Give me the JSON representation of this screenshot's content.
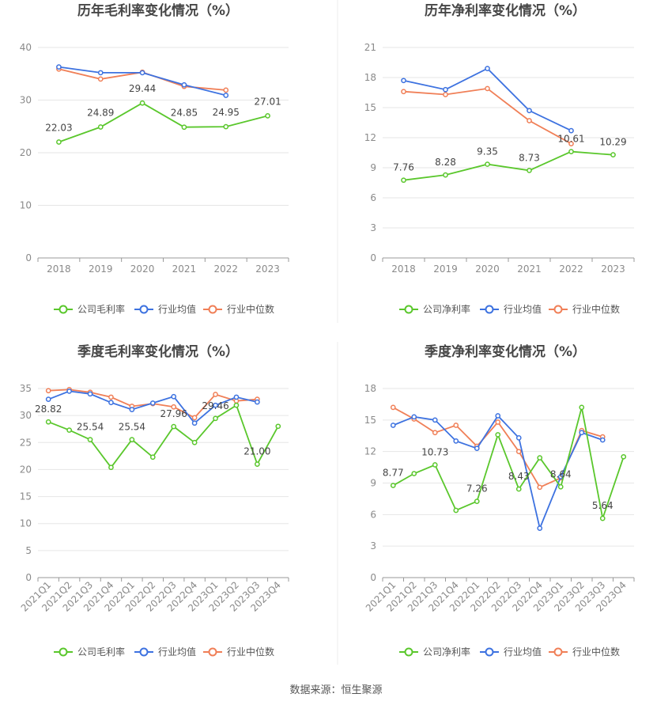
{
  "footer": {
    "source": "数据来源：恒生聚源"
  },
  "colors": {
    "company": "#5ac72c",
    "avg": "#3d72e0",
    "median": "#f07f57"
  },
  "chart_data": [
    {
      "type": "line",
      "title": "历年毛利率变化情况（%）",
      "categories": [
        "2018",
        "2019",
        "2020",
        "2021",
        "2022",
        "2023"
      ],
      "yticks": [
        "0",
        "10",
        "20",
        "30",
        "40"
      ],
      "ylim": [
        0,
        40
      ],
      "legend_placement": "bottom",
      "series": [
        {
          "name": "公司毛利率",
          "values": [
            22.03,
            24.89,
            29.44,
            24.85,
            24.95,
            27.01
          ]
        },
        {
          "name": "行业均值",
          "values": [
            36.3,
            35.2,
            35.2,
            32.9,
            30.9,
            null
          ]
        },
        {
          "name": "行业中位数",
          "values": [
            35.9,
            34.0,
            35.3,
            32.6,
            31.9,
            null
          ]
        }
      ],
      "data_labels": [
        {
          "text": "22.03",
          "index": 0
        },
        {
          "text": "24.89",
          "index": 1
        },
        {
          "text": "29.44",
          "index": 2
        },
        {
          "text": "24.85",
          "index": 3
        },
        {
          "text": "24.95",
          "index": 4
        },
        {
          "text": "27.01",
          "index": 5
        }
      ]
    },
    {
      "type": "line",
      "title": "历年净利率变化情况（%）",
      "categories": [
        "2018",
        "2019",
        "2020",
        "2021",
        "2022",
        "2023"
      ],
      "yticks": [
        "0",
        "3",
        "6",
        "9",
        "12",
        "15",
        "18",
        "21"
      ],
      "ylim": [
        0,
        21
      ],
      "legend_placement": "bottom",
      "series": [
        {
          "name": "公司净利率",
          "values": [
            7.76,
            8.28,
            9.35,
            8.73,
            10.61,
            10.29
          ]
        },
        {
          "name": "行业均值",
          "values": [
            17.7,
            16.8,
            18.9,
            14.7,
            12.7,
            null
          ]
        },
        {
          "name": "行业中位数",
          "values": [
            16.6,
            16.3,
            16.9,
            13.7,
            11.4,
            null
          ]
        }
      ],
      "data_labels": [
        {
          "text": "7.76",
          "index": 0
        },
        {
          "text": "8.28",
          "index": 1
        },
        {
          "text": "9.35",
          "index": 2
        },
        {
          "text": "8.73",
          "index": 3
        },
        {
          "text": "10.61",
          "index": 4
        },
        {
          "text": "10.29",
          "index": 5
        }
      ]
    },
    {
      "type": "line",
      "title": "季度毛利率变化情况（%）",
      "categories": [
        "2021Q1",
        "2021Q2",
        "2021Q3",
        "2021Q4",
        "2022Q1",
        "2022Q2",
        "2022Q3",
        "2022Q4",
        "2023Q1",
        "2023Q2",
        "2023Q3",
        "2023Q4"
      ],
      "yticks": [
        "0",
        "5",
        "10",
        "15",
        "20",
        "25",
        "30",
        "35"
      ],
      "ylim": [
        0,
        35
      ],
      "legend_placement": "bottom",
      "series": [
        {
          "name": "公司毛利率",
          "values": [
            28.82,
            27.3,
            25.54,
            20.4,
            25.54,
            22.3,
            27.96,
            25.0,
            29.46,
            31.9,
            21.0,
            28.0
          ]
        },
        {
          "name": "行业均值",
          "values": [
            33.0,
            34.5,
            34.0,
            32.4,
            31.1,
            32.3,
            33.5,
            28.6,
            31.9,
            33.4,
            32.5,
            null
          ]
        },
        {
          "name": "行业中位数",
          "values": [
            34.6,
            34.8,
            34.3,
            33.4,
            31.7,
            32.2,
            31.6,
            29.6,
            33.9,
            32.7,
            33.0,
            null
          ]
        }
      ],
      "data_labels": [
        {
          "text": "28.82",
          "index": 0
        },
        {
          "text": "25.54",
          "index": 2
        },
        {
          "text": "25.54",
          "index": 4
        },
        {
          "text": "27.96",
          "index": 6
        },
        {
          "text": "29.46",
          "index": 8
        },
        {
          "text": "21.00",
          "index": 10
        }
      ]
    },
    {
      "type": "line",
      "title": "季度净利率变化情况（%）",
      "categories": [
        "2021Q1",
        "2021Q2",
        "2021Q3",
        "2021Q4",
        "2022Q1",
        "2022Q2",
        "2022Q3",
        "2022Q4",
        "2023Q1",
        "2023Q2",
        "2023Q3",
        "2023Q4"
      ],
      "yticks": [
        "0",
        "3",
        "6",
        "9",
        "12",
        "15",
        "18"
      ],
      "ylim": [
        0,
        18
      ],
      "legend_placement": "bottom",
      "series": [
        {
          "name": "公司净利率",
          "values": [
            8.77,
            9.9,
            10.73,
            6.4,
            7.26,
            13.6,
            8.43,
            11.4,
            8.64,
            16.2,
            5.64,
            11.5
          ]
        },
        {
          "name": "行业均值",
          "values": [
            14.5,
            15.3,
            15.0,
            13.0,
            12.3,
            15.4,
            13.3,
            4.7,
            9.6,
            13.8,
            13.1,
            null
          ]
        },
        {
          "name": "行业中位数",
          "values": [
            16.2,
            15.1,
            13.8,
            14.5,
            12.5,
            14.8,
            12.0,
            8.6,
            9.5,
            14.0,
            13.4,
            null
          ]
        }
      ],
      "data_labels": [
        {
          "text": "8.77",
          "index": 0
        },
        {
          "text": "10.73",
          "index": 2
        },
        {
          "text": "7.26",
          "index": 4
        },
        {
          "text": "8.43",
          "index": 6
        },
        {
          "text": "8.64",
          "index": 8
        },
        {
          "text": "5.64",
          "index": 10
        }
      ]
    }
  ]
}
